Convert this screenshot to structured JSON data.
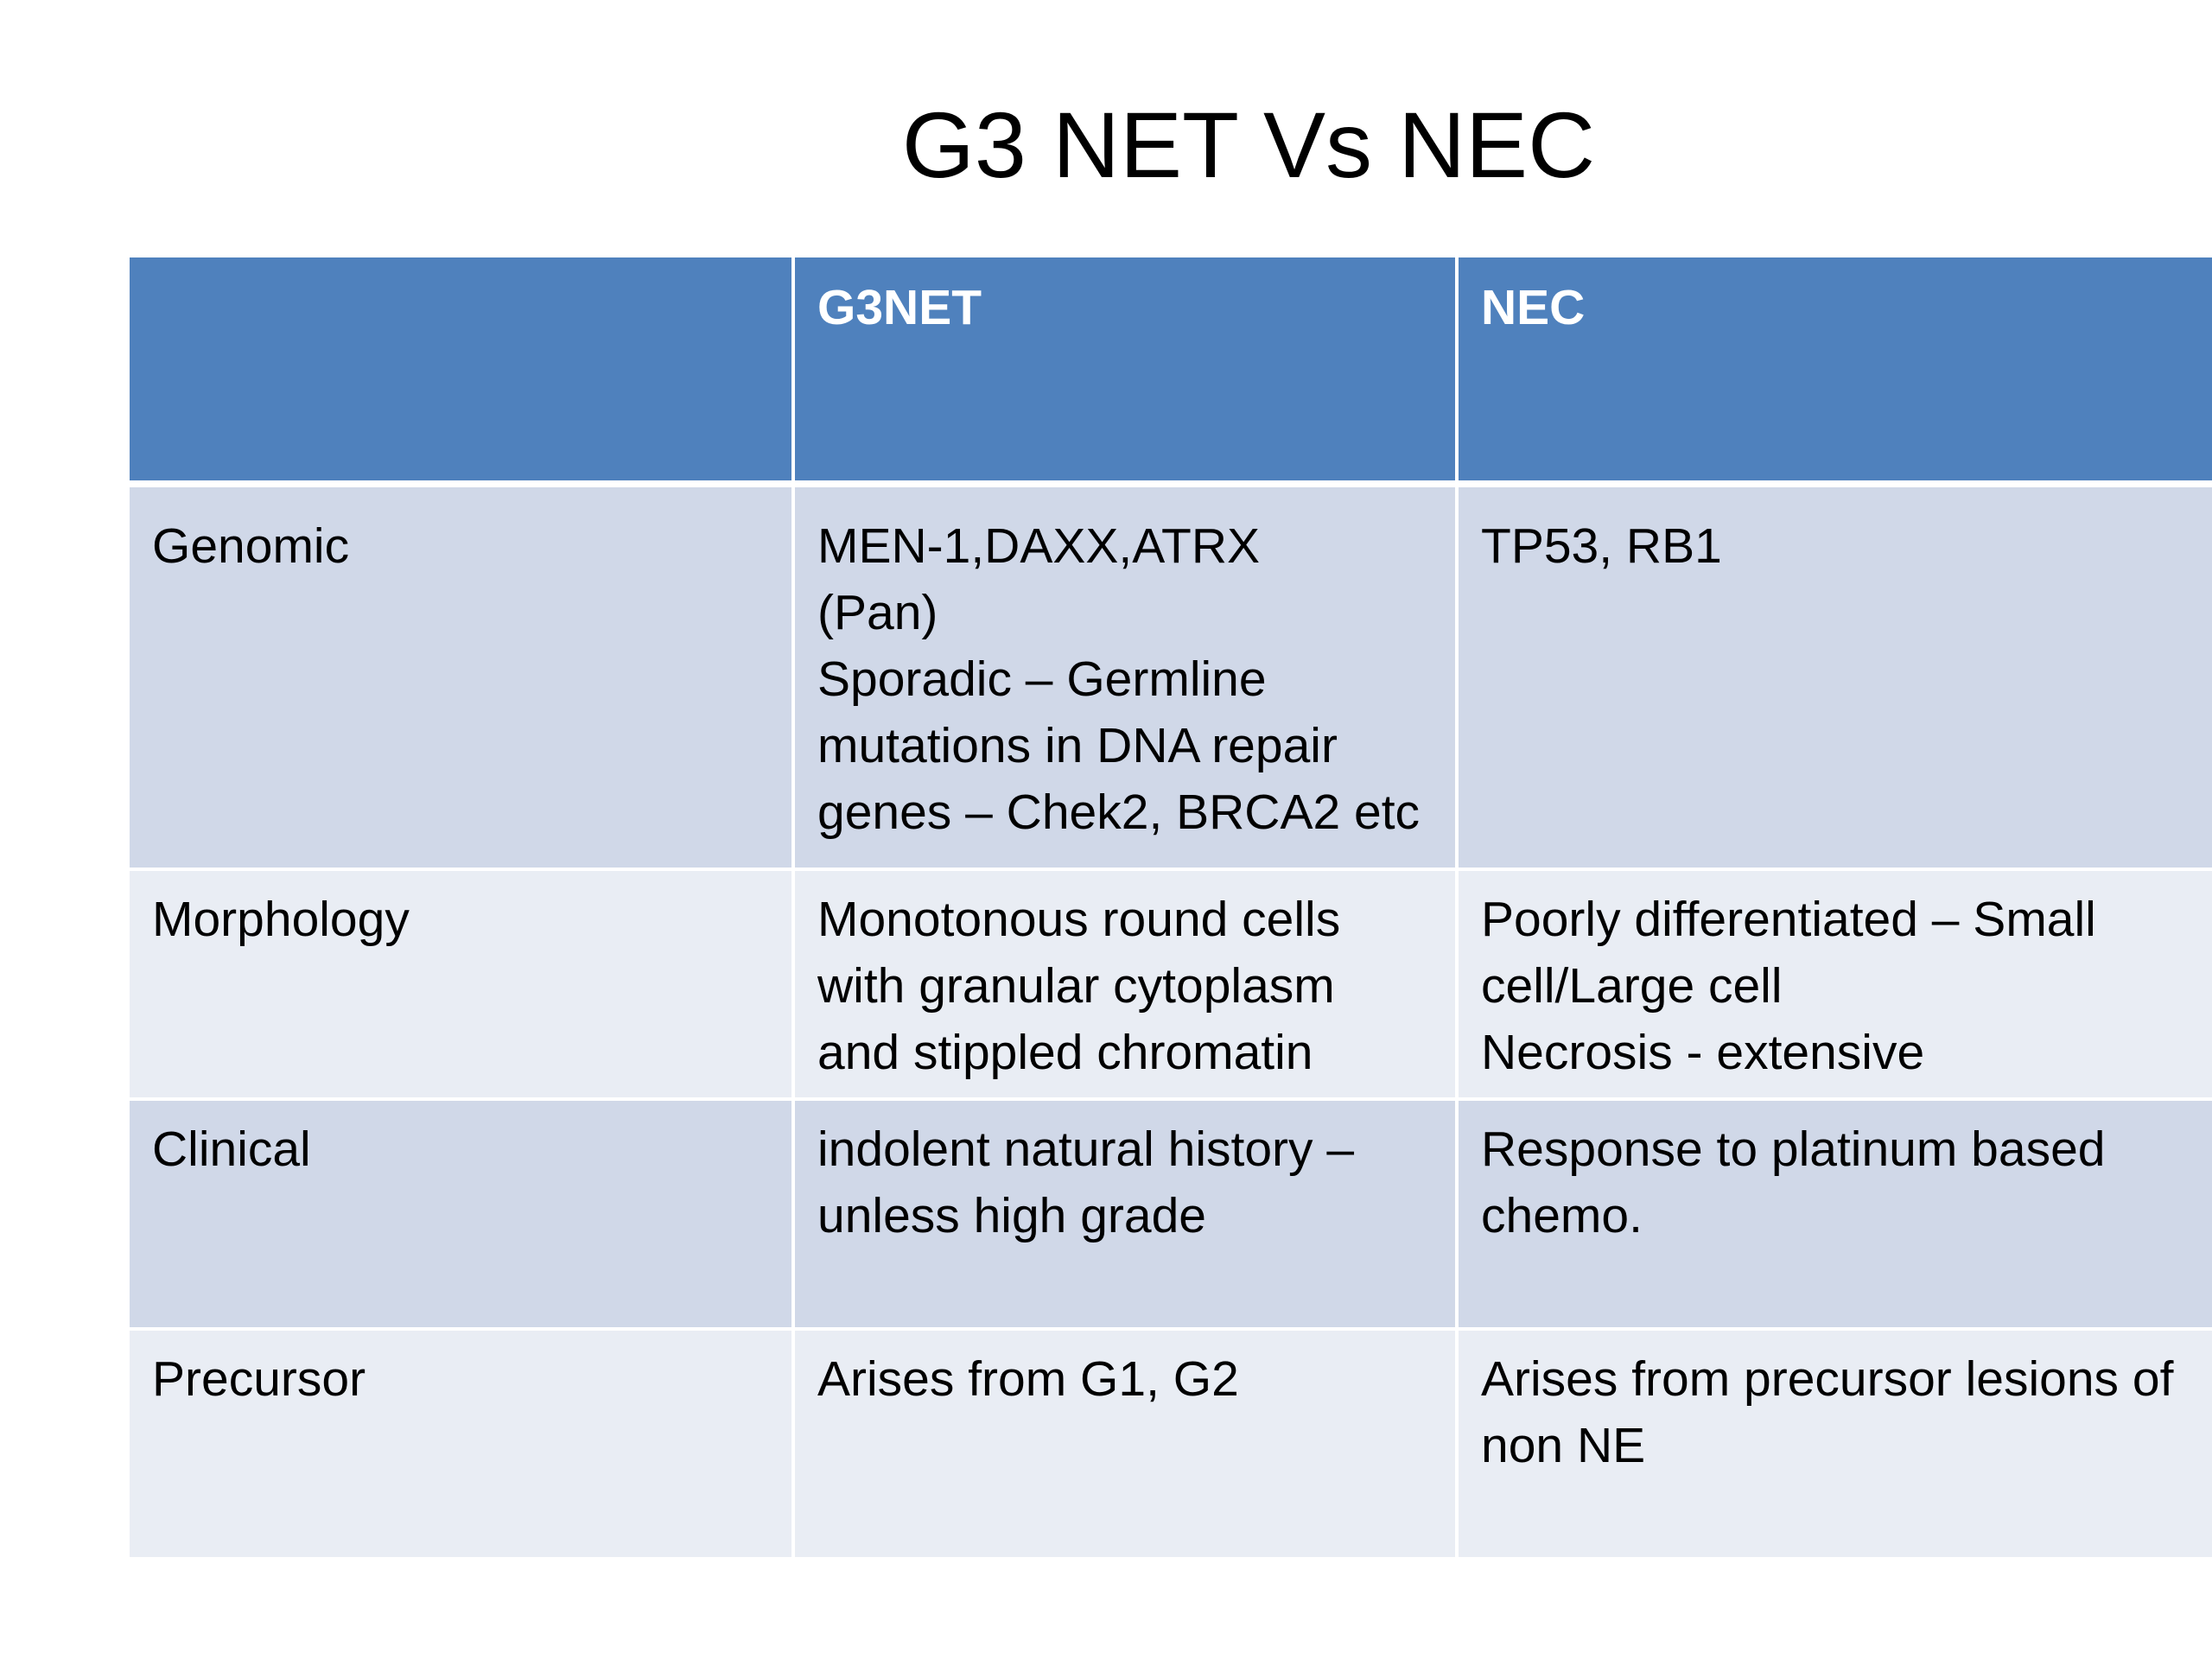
{
  "slide": {
    "title": "G3 NET Vs NEC"
  },
  "table": {
    "headers": [
      "",
      "G3NET",
      "NEC"
    ],
    "rows": [
      {
        "label": "Genomic",
        "g3net": "MEN-1,DAXX,ATRX\n(Pan)\nSporadic – Germline\nmutations in DNA repair\ngenes – Chek2, BRCA2 etc",
        "nec": "TP53, RB1"
      },
      {
        "label": "Morphology",
        "g3net": "Monotonous round cells\nwith granular cytoplasm\nand stippled chromatin",
        "nec": "Poorly differentiated – Small\ncell/Large cell\nNecrosis - extensive"
      },
      {
        "label": "Clinical",
        "g3net": " indolent natural history –\nunless high grade",
        "nec": "Response to platinum based\nchemo."
      },
      {
        "label": "Precursor",
        "g3net": "Arises from G1, G2",
        "nec": "Arises from precursor lesions of\nnon NE"
      }
    ]
  },
  "colors": {
    "header_fill": "#4f81bd",
    "row_fill_dark": "#d0d8e8",
    "row_fill_light": "#e9edf4"
  }
}
